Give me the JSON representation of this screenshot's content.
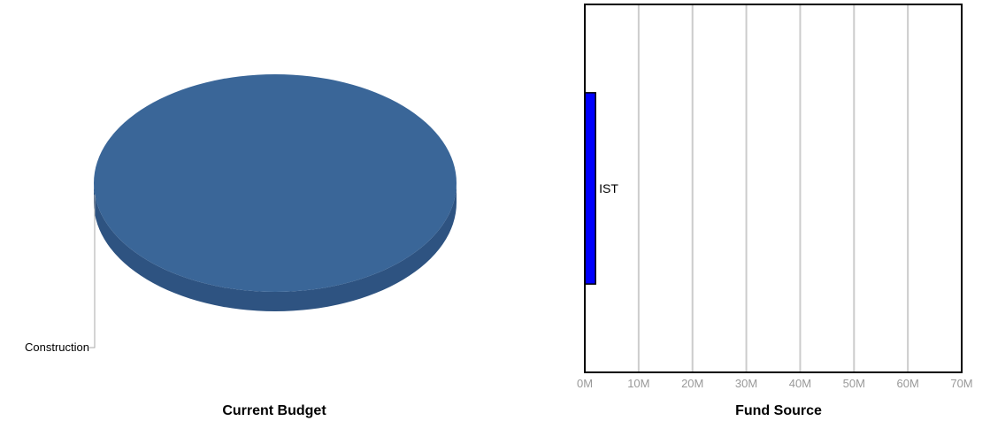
{
  "chart_data": [
    {
      "type": "pie",
      "title": "Current Budget",
      "slices": [
        {
          "label": "Construction",
          "value": 100
        }
      ],
      "colors": {
        "slice": "#3a6698",
        "slice_side": "#2e5381",
        "leader": "#aaaaaa"
      }
    },
    {
      "type": "bar",
      "orientation": "horizontal",
      "title": "Fund Source",
      "categories": [
        "IST"
      ],
      "values": [
        2000000
      ],
      "xlim": [
        0,
        70000000
      ],
      "tick_values": [
        0,
        10000000,
        20000000,
        30000000,
        40000000,
        50000000,
        60000000,
        70000000
      ],
      "tick_labels": [
        "0M",
        "10M",
        "20M",
        "30M",
        "40M",
        "50M",
        "60M",
        "70M"
      ],
      "grid": true,
      "colors": {
        "bar": "#0000ff",
        "grid": "#cccccc",
        "tick_text": "#999999"
      }
    }
  ]
}
